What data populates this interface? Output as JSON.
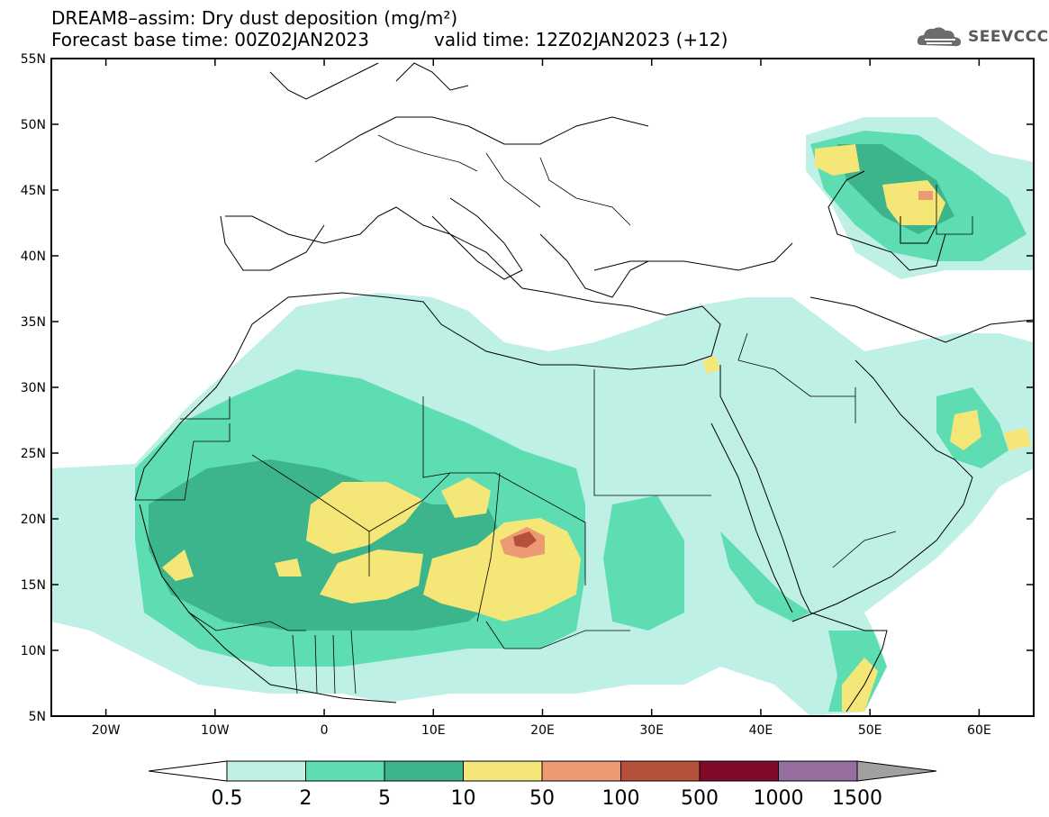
{
  "header": {
    "title_line1": "DREAM8–assim: Dry dust deposition (mg/m²)",
    "title_line2": "Forecast base time: 00Z02JAN2023",
    "valid_time": "valid time: 12Z02JAN2023 (+12)",
    "logo_text": "SEEVCCC",
    "logo_icon": "cloud-logo-icon"
  },
  "map": {
    "region": "North Africa, Europe, Middle East",
    "lon_range": [
      -25,
      65
    ],
    "lat_range": [
      5,
      55
    ],
    "lat_labels": [
      "55N",
      "50N",
      "45N",
      "40N",
      "35N",
      "30N",
      "25N",
      "20N",
      "15N",
      "10N",
      "5N"
    ],
    "lon_labels": [
      "20W",
      "10W",
      "0",
      "10E",
      "20E",
      "30E",
      "40E",
      "50E",
      "60E"
    ]
  },
  "legend": {
    "labels": [
      "0.5",
      "2",
      "5",
      "10",
      "50",
      "100",
      "500",
      "1000",
      "1500"
    ],
    "colors": [
      "#bff0e6",
      "#5edcb2",
      "#3cb48c",
      "#f5e678",
      "#eb9a73",
      "#b4503c",
      "#820a28",
      "#966ea0"
    ],
    "under_color": "#ffffff",
    "over_color": "#a0a0a0"
  }
}
